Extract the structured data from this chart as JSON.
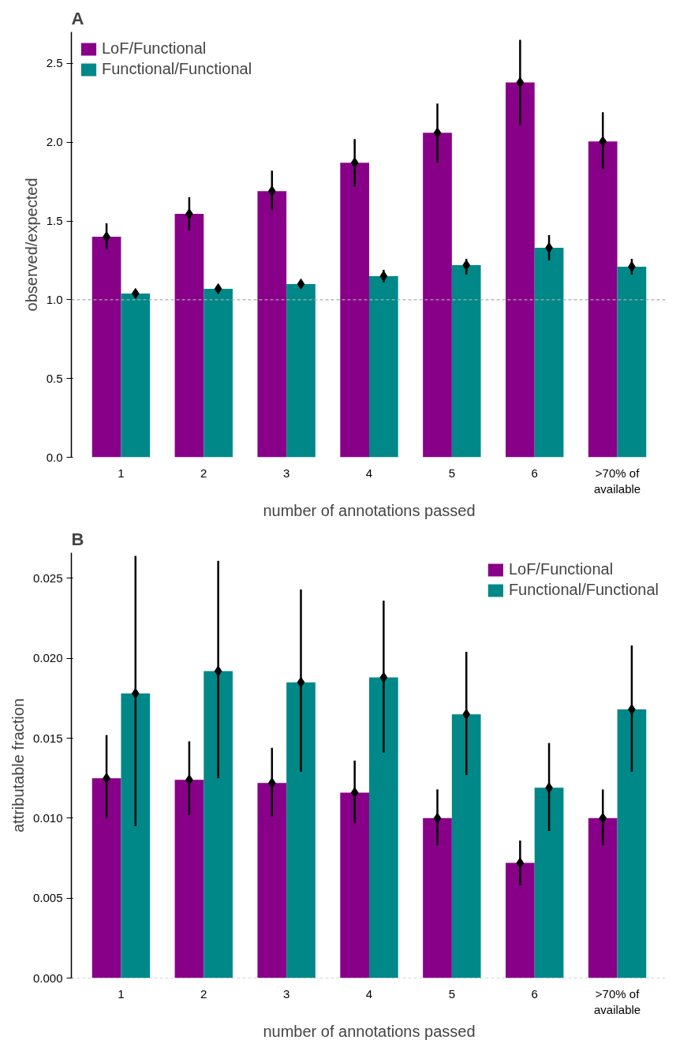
{
  "chart_data": [
    {
      "type": "bar",
      "title": "A",
      "xlabel": "number of annotations passed",
      "ylabel": "observed/expected",
      "categories": [
        "1",
        "2",
        "3",
        "4",
        "5",
        "6",
        ">70% of\navailable"
      ],
      "series": [
        {
          "name": "LoF/Functional",
          "color": "#880088",
          "values": [
            1.4,
            1.545,
            1.69,
            1.87,
            2.06,
            2.38,
            2.005
          ],
          "errors": [
            [
              1.32,
              1.485
            ],
            [
              1.44,
              1.65
            ],
            [
              1.57,
              1.82
            ],
            [
              1.72,
              2.02
            ],
            [
              1.87,
              2.245
            ],
            [
              2.11,
              2.65
            ],
            [
              1.83,
              2.19
            ]
          ]
        },
        {
          "name": "Functional/Functional",
          "color": "#008888",
          "values": [
            1.04,
            1.07,
            1.1,
            1.15,
            1.22,
            1.33,
            1.21
          ],
          "errors": [
            [
              1.03,
              1.05
            ],
            [
              1.06,
              1.08
            ],
            [
              1.08,
              1.12
            ],
            [
              1.11,
              1.19
            ],
            [
              1.16,
              1.26
            ],
            [
              1.25,
              1.41
            ],
            [
              1.16,
              1.26
            ]
          ]
        },
        {
          "type": "scatter",
          "color": "#000000",
          "marker": "diamond",
          "x": [
            "1",
            "2",
            "3",
            "4",
            "5",
            "6",
            ">70% of\navailable"
          ],
          "values": [
            1.4,
            1.545,
            1.69,
            1.87,
            2.06,
            2.38,
            2.005
          ]
        },
        {
          "type": "scatter",
          "color": "#000000",
          "marker": "diamond",
          "x": [
            "1",
            "2",
            "3",
            "4",
            "5",
            "6",
            ">70% of\navailable"
          ],
          "values": [
            1.04,
            1.07,
            1.1,
            1.15,
            1.22,
            1.33,
            1.21
          ]
        }
      ],
      "ylim": [
        0,
        2.7
      ],
      "yticks": [
        {
          "value": 0,
          "label": "0.0"
        },
        0.5,
        {
          "value": 1,
          "label": "1.0"
        },
        1.5,
        {
          "value": 2,
          "label": "2.0"
        },
        2.5
      ],
      "ref_lines": [
        {
          "axis": "y",
          "value": 1,
          "color": "#aaaaaa",
          "line_style": "dashed"
        }
      ],
      "grid": false,
      "legend": "top left"
    },
    {
      "type": "bar",
      "title": "B",
      "xlabel": "number of annotations passed",
      "ylabel": "attributable fraction",
      "categories": [
        "1",
        "2",
        "3",
        "4",
        "5",
        "6",
        ">70% of\navailable"
      ],
      "series": [
        {
          "name": "LoF/Functional",
          "color": "#880088",
          "values": [
            0.0125,
            0.0124,
            0.0122,
            0.0116,
            0.01,
            0.0072,
            0.01
          ],
          "errors": [
            [
              0.01,
              0.0152
            ],
            [
              0.0102,
              0.0148
            ],
            [
              0.0101,
              0.0144
            ],
            [
              0.0097,
              0.0136
            ],
            [
              0.0083,
              0.0118
            ],
            [
              0.0058,
              0.0086
            ],
            [
              0.0083,
              0.0118
            ]
          ]
        },
        {
          "name": "Functional/Functional",
          "color": "#008888",
          "values": [
            0.0178,
            0.0192,
            0.0185,
            0.0188,
            0.0165,
            0.0119,
            0.0168
          ],
          "errors": [
            [
              0.0095,
              0.0264
            ],
            [
              0.0125,
              0.0261
            ],
            [
              0.0129,
              0.0243
            ],
            [
              0.0141,
              0.0236
            ],
            [
              0.0127,
              0.0204
            ],
            [
              0.0092,
              0.0147
            ],
            [
              0.0129,
              0.0208
            ]
          ]
        },
        {
          "type": "scatter",
          "color": "#000000",
          "marker": "diamond",
          "x": [
            "1",
            "2",
            "3",
            "4",
            "5",
            "6",
            ">70% of\navailable"
          ],
          "values": [
            0.0125,
            0.0124,
            0.0122,
            0.0116,
            0.01,
            0.0072,
            0.01
          ]
        },
        {
          "type": "scatter",
          "color": "#000000",
          "marker": "diamond",
          "x": [
            "1",
            "2",
            "3",
            "4",
            "5",
            "6",
            ">70% of\navailable"
          ],
          "values": [
            0.0178,
            0.0192,
            0.0185,
            0.0188,
            0.0165,
            0.0119,
            0.0168
          ]
        }
      ],
      "ylim": [
        0,
        0.0266
      ],
      "yticks": [
        {
          "value": 0,
          "label": "0.000"
        },
        0.005,
        {
          "value": 0.01,
          "label": "0.010"
        },
        0.015,
        {
          "value": 0.02,
          "label": "0.020"
        },
        0.025
      ],
      "ref_lines": [
        {
          "axis": "y",
          "value": 0,
          "color": "#aaaaaa",
          "line_style": "dashed"
        }
      ],
      "grid": false,
      "legend": "top right"
    }
  ]
}
